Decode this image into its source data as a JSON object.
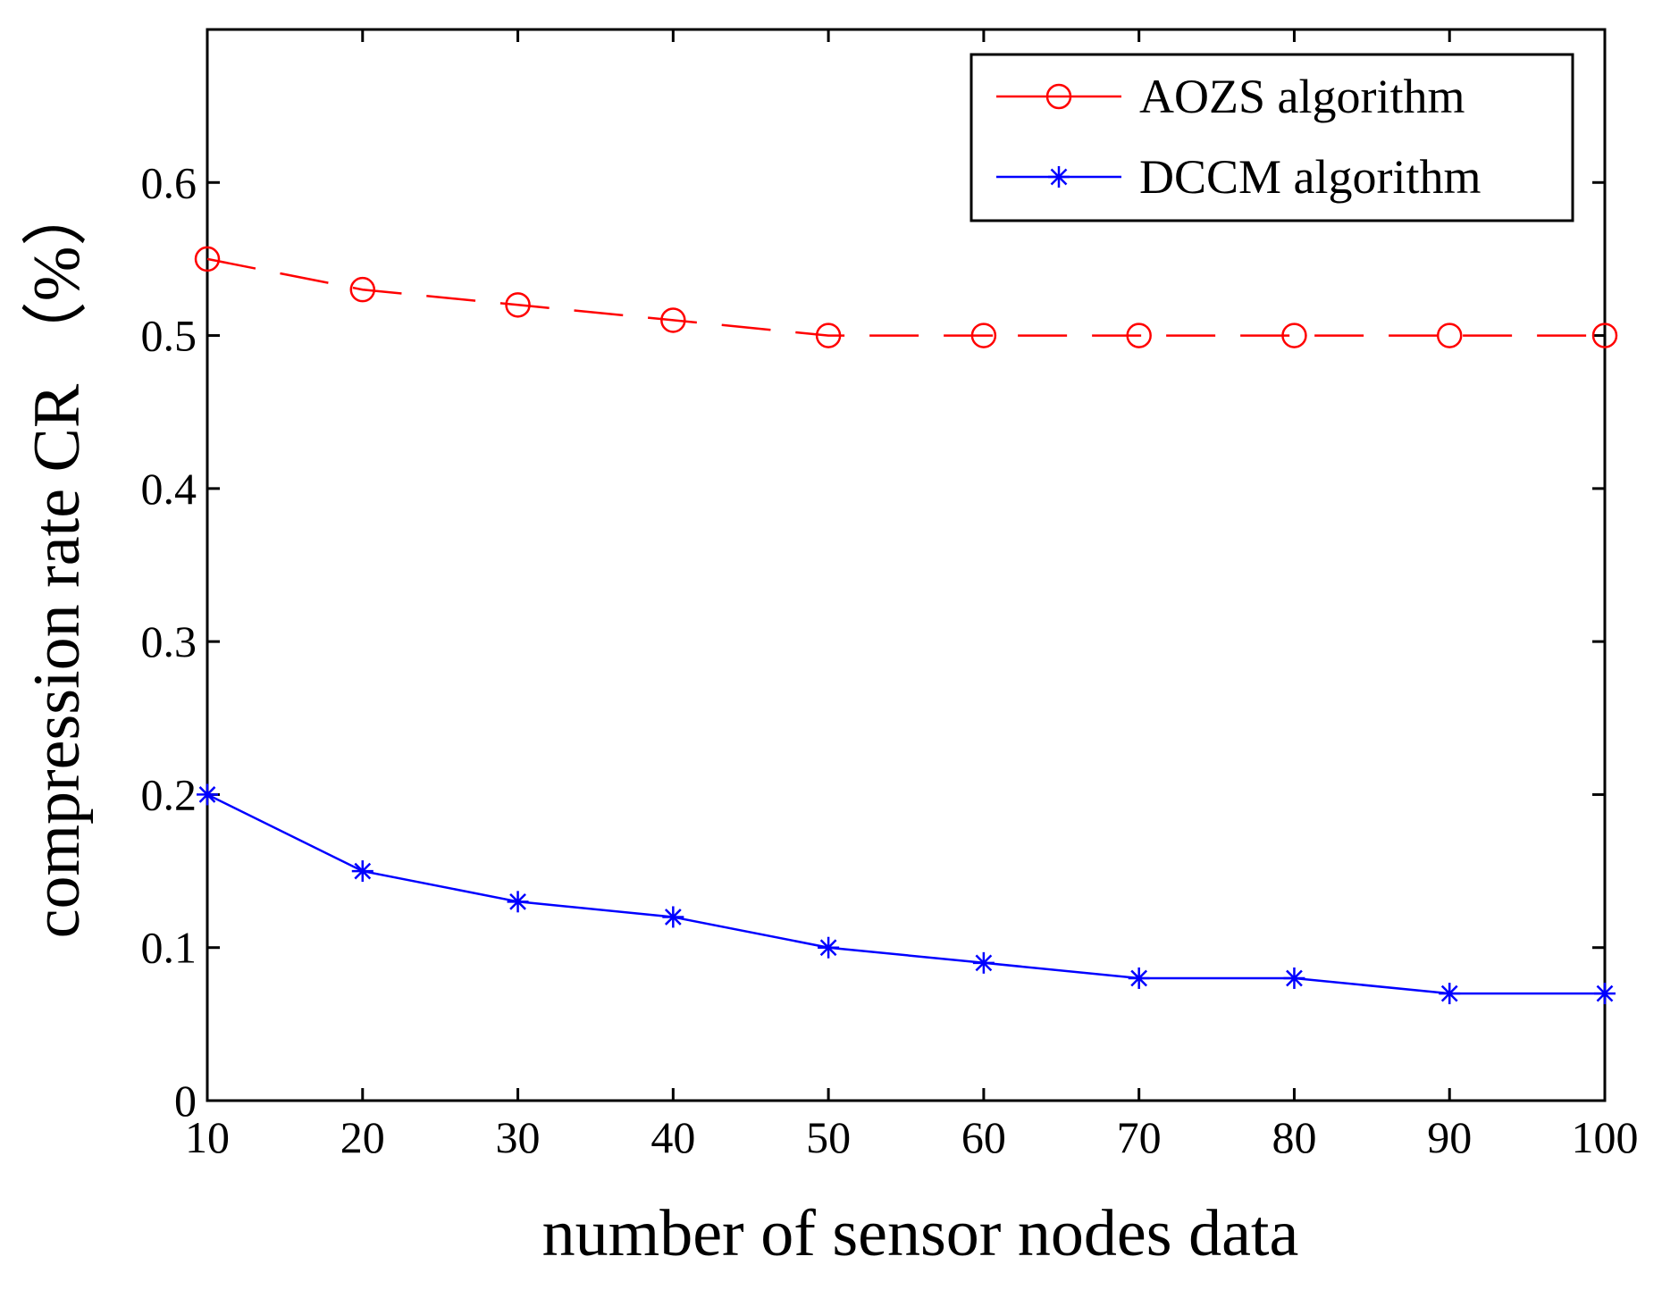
{
  "chart_data": {
    "type": "line",
    "title": "",
    "xlabel": "number of sensor nodes data",
    "ylabel": "compression rate CR （%）",
    "xlim": [
      10,
      100
    ],
    "ylim": [
      0,
      0.7
    ],
    "xticks": [
      10,
      20,
      30,
      40,
      50,
      60,
      70,
      80,
      90,
      100
    ],
    "yticks": [
      0,
      0.1,
      0.2,
      0.3,
      0.4,
      0.5,
      0.6
    ],
    "ytick_labels": [
      "0",
      "0.1",
      "0.2",
      "0.3",
      "0.4",
      "0.5",
      "0.6"
    ],
    "grid": false,
    "legend_position": "top-right",
    "x": [
      10,
      20,
      30,
      40,
      50,
      60,
      70,
      80,
      90,
      100
    ],
    "series": [
      {
        "name": "AOZS algorithm",
        "values": [
          0.55,
          0.53,
          0.52,
          0.51,
          0.5,
          0.5,
          0.5,
          0.5,
          0.5,
          0.5
        ],
        "color": "#ff0000",
        "marker": "circle",
        "line_style": "dashed"
      },
      {
        "name": "DCCM algorithm",
        "values": [
          0.2,
          0.15,
          0.13,
          0.12,
          0.1,
          0.09,
          0.08,
          0.08,
          0.07,
          0.07
        ],
        "color": "#0000ff",
        "marker": "asterisk",
        "line_style": "solid"
      }
    ]
  }
}
